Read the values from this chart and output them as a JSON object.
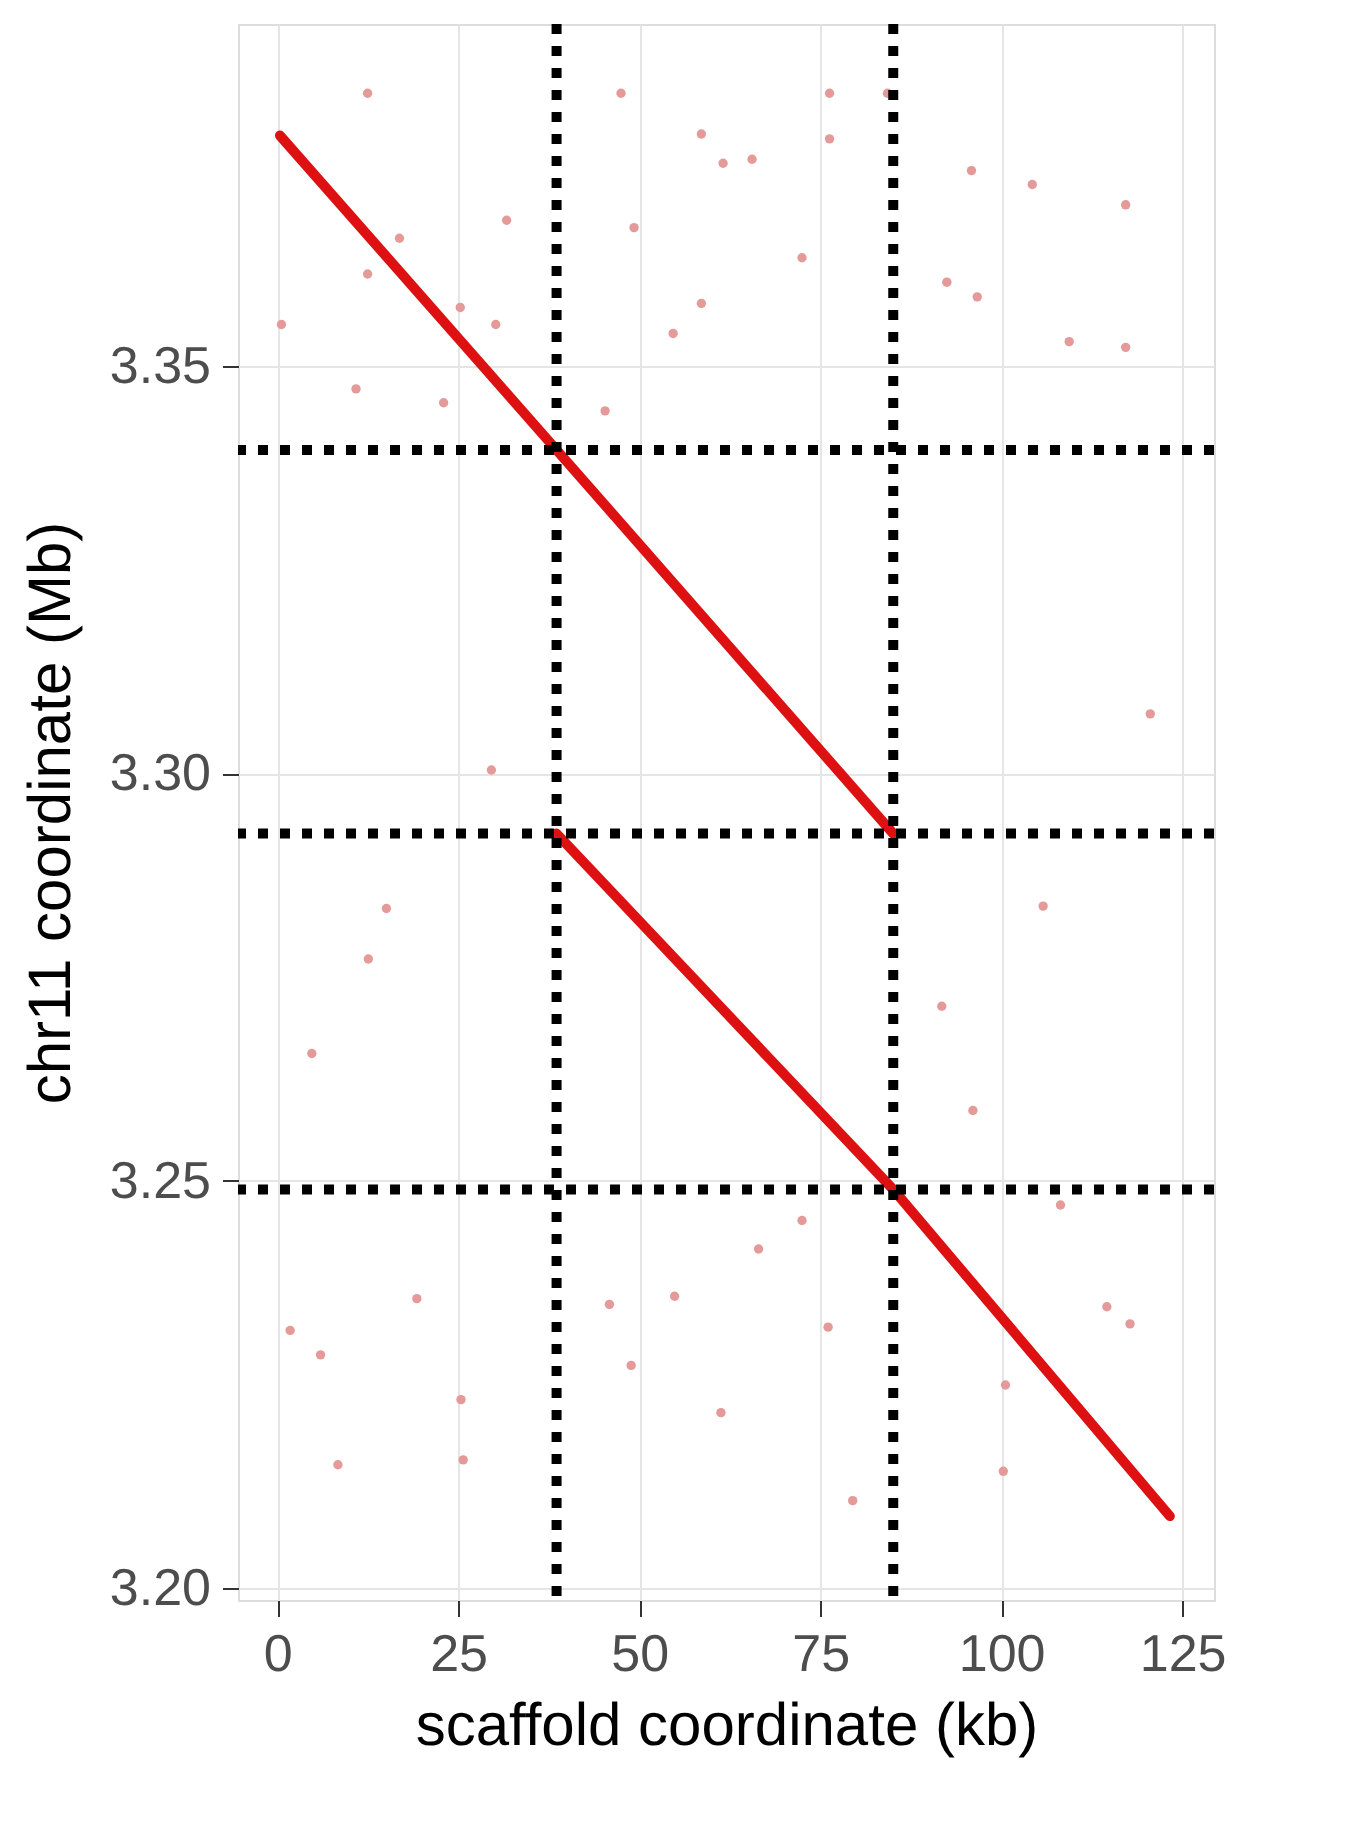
{
  "chart_data": {
    "type": "scatter",
    "xlabel": "scaffold coordinate (kb)",
    "ylabel": "chr11 coordinate (Mb)",
    "xlim": [
      -5.4,
      129.4
    ],
    "ylim": [
      3.1985,
      3.392
    ],
    "xticks": [
      0,
      25,
      50,
      75,
      100,
      125
    ],
    "yticks": [
      {
        "value": 3.2,
        "label": "3.20"
      },
      {
        "value": 3.25,
        "label": "3.25"
      },
      {
        "value": 3.3,
        "label": "3.30"
      },
      {
        "value": 3.35,
        "label": "3.35"
      }
    ],
    "grid": true,
    "series": [
      {
        "type": "line",
        "color": "#dd1111",
        "x": [
          0.4,
          38.6,
          85.1
        ],
        "values": [
          3.3783,
          3.3397,
          3.2926
        ]
      },
      {
        "type": "line",
        "color": "#dd1111",
        "x": [
          38.6,
          85.1,
          123.3
        ],
        "values": [
          3.2926,
          3.2489,
          3.2088
        ]
      },
      {
        "color": "#e59a9a",
        "marker": "circle",
        "x": [
          12.5,
          47.5,
          76.3,
          76.3,
          84.3,
          16.9,
          31.7,
          12.5,
          72.5,
          117.2,
          117.2,
          109.4,
          104.3,
          58.6,
          61.6,
          65.6,
          92.5,
          96.7,
          0.6,
          25.3,
          30.2,
          10.9,
          45.3,
          54.7,
          58.6,
          49.3,
          95.9,
          120.6,
          29.6,
          23.0,
          4.8,
          12.6,
          15.1,
          105.8,
          91.8,
          96.1,
          19.3,
          6.0,
          25.4,
          25.7,
          8.4,
          48.9,
          45.9,
          61.3,
          72.5,
          76.1,
          66.5,
          100.6,
          100.3,
          114.6,
          117.8,
          108.2,
          79.5,
          54.9,
          1.8
        ],
        "values": [
          3.3835,
          3.3835,
          3.3835,
          3.3779,
          3.3835,
          3.3657,
          3.3679,
          3.3613,
          3.3633,
          3.3698,
          3.3523,
          3.353,
          3.3723,
          3.3785,
          3.3749,
          3.3754,
          3.3603,
          3.3585,
          3.3551,
          3.3572,
          3.3551,
          3.3472,
          3.3445,
          3.354,
          3.3577,
          3.367,
          3.374,
          3.3073,
          3.3004,
          3.3455,
          3.2656,
          3.2772,
          3.2834,
          3.2837,
          3.2714,
          3.2586,
          3.2355,
          3.2286,
          3.2231,
          3.2157,
          3.2151,
          3.2273,
          3.2348,
          3.2215,
          3.2451,
          3.232,
          3.2416,
          3.2249,
          3.2143,
          3.2345,
          3.2324,
          3.247,
          3.2107,
          3.2358,
          3.2316
        ]
      }
    ],
    "ref_lines": [
      {
        "axis": "x",
        "value": 38.6,
        "color": "#000000",
        "line_style": "dotted"
      },
      {
        "axis": "x",
        "value": 85.1,
        "color": "#000000",
        "line_style": "dotted"
      },
      {
        "axis": "y",
        "value": 3.3397,
        "color": "#000000",
        "line_style": "dotted"
      },
      {
        "axis": "y",
        "value": 3.2926,
        "color": "#000000",
        "line_style": "dotted"
      },
      {
        "axis": "y",
        "value": 3.2489,
        "color": "#000000",
        "line_style": "dotted"
      }
    ]
  }
}
